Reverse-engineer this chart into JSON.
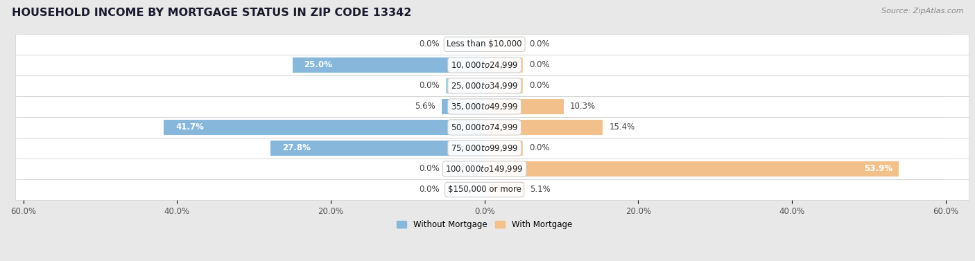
{
  "title": "HOUSEHOLD INCOME BY MORTGAGE STATUS IN ZIP CODE 13342",
  "source": "Source: ZipAtlas.com",
  "categories": [
    "Less than $10,000",
    "$10,000 to $24,999",
    "$25,000 to $34,999",
    "$35,000 to $49,999",
    "$50,000 to $74,999",
    "$75,000 to $99,999",
    "$100,000 to $149,999",
    "$150,000 or more"
  ],
  "without_mortgage": [
    0.0,
    25.0,
    0.0,
    5.6,
    41.7,
    27.8,
    0.0,
    0.0
  ],
  "with_mortgage": [
    0.0,
    0.0,
    0.0,
    10.3,
    15.4,
    0.0,
    53.9,
    5.1
  ],
  "color_without": "#87b8dc",
  "color_with": "#f2c08a",
  "color_without_stub": "#aacde8",
  "color_with_stub": "#f5d3aa",
  "axis_limit": 60.0,
  "background_color": "#e8e8e8",
  "row_background": "#ffffff",
  "row_edge_color": "#d0d0d0",
  "title_fontsize": 11.5,
  "cat_fontsize": 8.5,
  "pct_fontsize": 8.5,
  "tick_fontsize": 8.5,
  "source_fontsize": 8,
  "legend_fontsize": 8.5,
  "bar_height": 0.72,
  "stub_size": 5.0
}
